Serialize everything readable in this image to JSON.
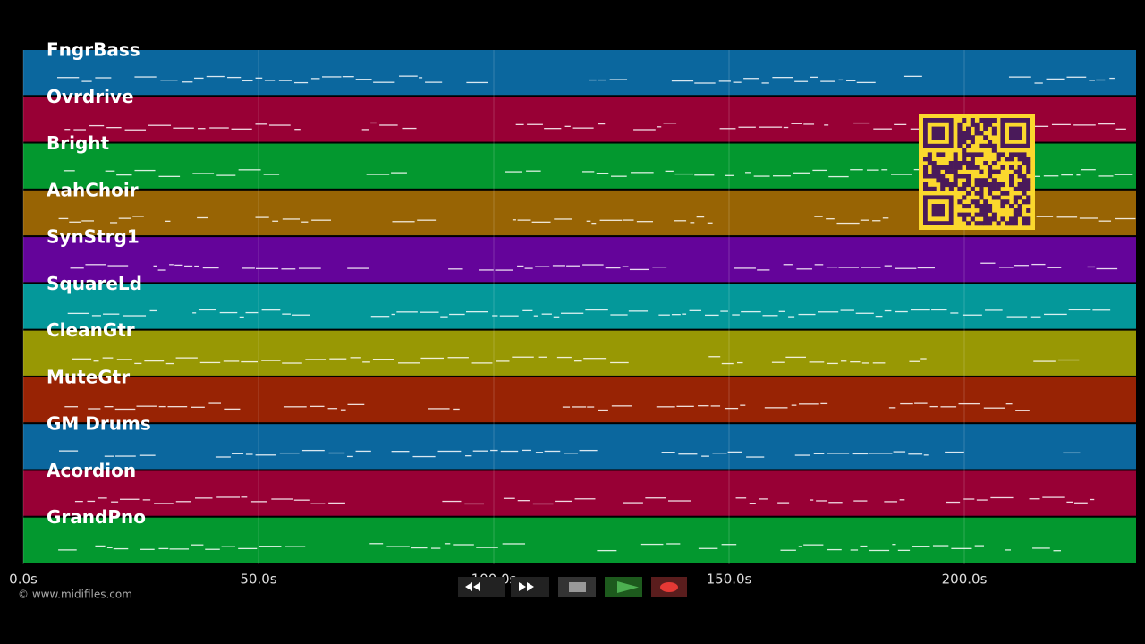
{
  "tracks": [
    {
      "name": "FngrBass",
      "color": "#0b679e"
    },
    {
      "name": "Ovrdrive",
      "color": "#980035"
    },
    {
      "name": "Bright",
      "color": "#03982f"
    },
    {
      "name": "AahChoir",
      "color": "#986404"
    },
    {
      "name": "SynStrg1",
      "color": "#64049a"
    },
    {
      "name": "SquareLd",
      "color": "#04989a"
    },
    {
      "name": "CleanGtr",
      "color": "#989804"
    },
    {
      "name": "MuteGtr",
      "color": "#982304"
    },
    {
      "name": "GM Drums",
      "color": "#0b679e"
    },
    {
      "name": "Acordion",
      "color": "#980035"
    },
    {
      "name": "GrandPno",
      "color": "#03982f"
    }
  ],
  "axis": {
    "xlim": [
      0,
      236.5
    ],
    "xticks": [
      {
        "value": 0,
        "label": "0.0s"
      },
      {
        "value": 50,
        "label": "50.0s"
      },
      {
        "value": 100,
        "label": "100.0s"
      },
      {
        "value": 150,
        "label": "150.0s"
      },
      {
        "value": 200,
        "label": "200.0s"
      }
    ]
  },
  "footer": {
    "copyright": "© www.midifiles.com"
  }
}
